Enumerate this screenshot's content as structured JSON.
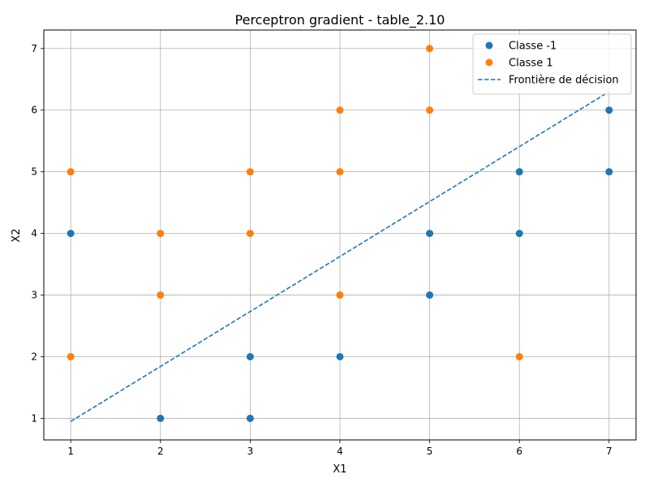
{
  "chart_data": {
    "type": "scatter",
    "title": "Perceptron gradient - table_2.10",
    "xlabel": "X1",
    "ylabel": "X2",
    "xlim": [
      0.7,
      7.3
    ],
    "ylim": [
      0.65,
      7.3
    ],
    "xticks": [
      1,
      2,
      3,
      4,
      5,
      6,
      7
    ],
    "yticks": [
      1,
      2,
      3,
      4,
      5,
      6,
      7
    ],
    "grid": true,
    "legend_position": "top-right",
    "series": [
      {
        "name": "Classe -1",
        "color": "#1f77b4",
        "points": [
          [
            1,
            4
          ],
          [
            2,
            1
          ],
          [
            3,
            1
          ],
          [
            3,
            2
          ],
          [
            4,
            2
          ],
          [
            5,
            3
          ],
          [
            5,
            4
          ],
          [
            6,
            4
          ],
          [
            6,
            5
          ],
          [
            7,
            5
          ],
          [
            7,
            6
          ]
        ]
      },
      {
        "name": "Classe 1",
        "color": "#ff7f0e",
        "points": [
          [
            1,
            2
          ],
          [
            1,
            5
          ],
          [
            2,
            3
          ],
          [
            2,
            4
          ],
          [
            3,
            4
          ],
          [
            3,
            5
          ],
          [
            4,
            3
          ],
          [
            4,
            5
          ],
          [
            4,
            6
          ],
          [
            5,
            6
          ],
          [
            5,
            7
          ],
          [
            6,
            2
          ]
        ]
      }
    ],
    "lines": [
      {
        "name": "Frontière de décision",
        "color": "#1f77b4",
        "style": "dashed",
        "points": [
          [
            1,
            0.95
          ],
          [
            7,
            6.3
          ]
        ]
      }
    ]
  }
}
